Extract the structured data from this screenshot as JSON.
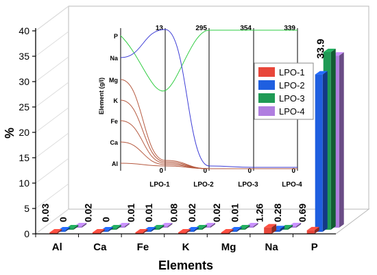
{
  "chart_data": [
    {
      "type": "bar",
      "title": "",
      "xlabel": "Elements",
      "ylabel": "%",
      "ylim": [
        0,
        40
      ],
      "yticks": [
        0,
        5,
        10,
        15,
        20,
        25,
        30,
        35,
        40
      ],
      "categories": [
        "Al",
        "Ca",
        "Fe",
        "K",
        "Mg",
        "Na",
        "P"
      ],
      "series": [
        {
          "name": "LPO-1",
          "color": "#e8463a",
          "values": [
            0.03,
            0.02,
            0.01,
            0.08,
            0.02,
            1.26,
            0.69
          ]
        },
        {
          "name": "LPO-2",
          "color": "#1f5fe0",
          "values": [
            0.01,
            0.01,
            0.01,
            0.01,
            0.01,
            0.5,
            31.0
          ]
        },
        {
          "name": "LPO-3",
          "color": "#1f9a55",
          "values": [
            0.01,
            0.01,
            0.01,
            0.01,
            0.01,
            0.2,
            35.0
          ]
        },
        {
          "name": "LPO-4",
          "color": "#b07ee0",
          "values": [
            0,
            0,
            0.01,
            0.02,
            0.01,
            0.28,
            33.9
          ]
        }
      ],
      "data_labels": [
        "0.03",
        "0",
        "0.02",
        "0",
        "0.01",
        "0.01",
        "0.08",
        "0.02",
        "0.02",
        "0.01",
        "1.26",
        "0.28",
        "0.69",
        "33.9"
      ],
      "legend": {
        "placement": "center-right",
        "entries": [
          "LPO-1",
          "LPO-2",
          "LPO-3",
          "LPO-4"
        ]
      },
      "grid": false,
      "projection": "3d"
    },
    {
      "type": "line",
      "title": "",
      "xlabel": "",
      "ylabel": "Element (g/l)",
      "categories": [
        "LPO-1",
        "LPO-2",
        "LPO-3",
        "LPO-4"
      ],
      "y_categories": [
        "P",
        "Na",
        "Mg",
        "K",
        "Fe",
        "Ca",
        "Al"
      ],
      "top_labels": [
        "13",
        "295",
        "354",
        "339"
      ],
      "bottom_labels": [
        "0",
        "0",
        "0",
        "0"
      ],
      "series": [
        {
          "name": "P",
          "color": "#2ecc40",
          "values": [
            0.55,
            1.0,
            1.0,
            1.0
          ]
        },
        {
          "name": "Na",
          "color": "#3b3bd6",
          "values": [
            1.0,
            0.02,
            0.01,
            0.01
          ]
        },
        {
          "name": "Mg",
          "color": "#b5583e",
          "values": [
            0.06,
            0.0,
            0.0,
            0.0
          ]
        },
        {
          "name": "K",
          "color": "#b5583e",
          "values": [
            0.05,
            0.0,
            0.0,
            0.0
          ]
        },
        {
          "name": "Fe",
          "color": "#b5583e",
          "values": [
            0.04,
            0.0,
            0.0,
            0.0
          ]
        },
        {
          "name": "Ca",
          "color": "#b5583e",
          "values": [
            0.03,
            0.0,
            0.0,
            0.0
          ]
        },
        {
          "name": "Al",
          "color": "#b5583e",
          "values": [
            0.02,
            0.0,
            0.0,
            0.0
          ]
        }
      ]
    }
  ]
}
